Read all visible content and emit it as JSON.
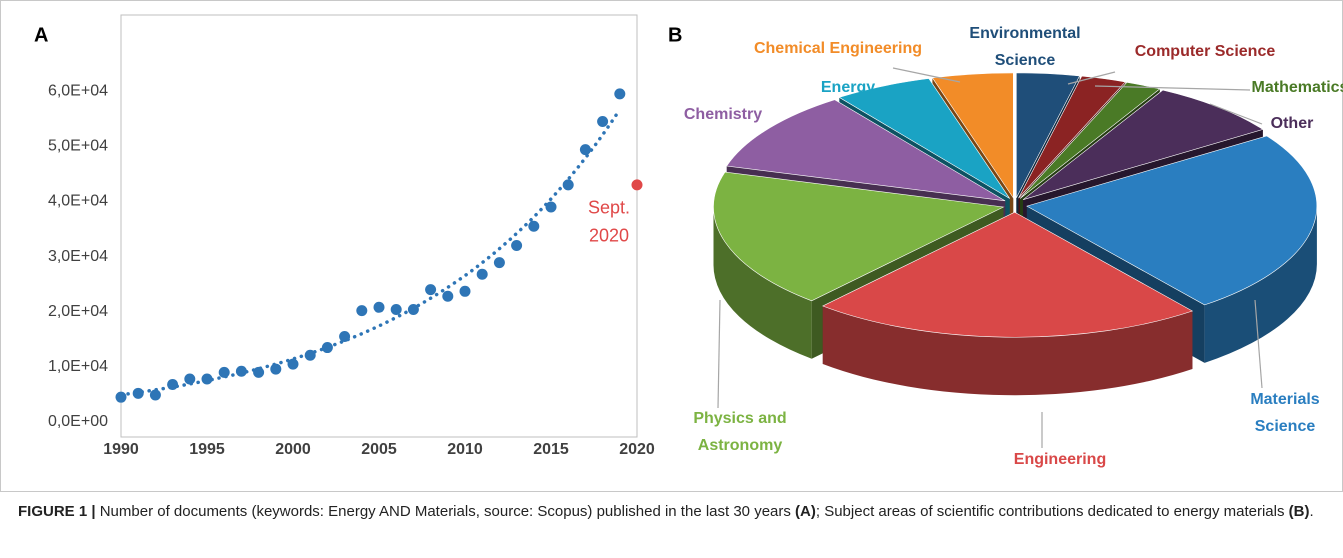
{
  "chart_data": [
    {
      "type": "scatter",
      "panel_label": "A",
      "xlim": [
        1990,
        2020
      ],
      "xticks": [
        1990,
        1995,
        2000,
        2005,
        2010,
        2015,
        2020
      ],
      "ylim": [
        0,
        70000
      ],
      "yticks": [
        {
          "value": 0,
          "label": "0,0E+00"
        },
        {
          "value": 10000,
          "label": "1,0E+04"
        },
        {
          "value": 20000,
          "label": "2,0E+04"
        },
        {
          "value": 30000,
          "label": "3,0E+04"
        },
        {
          "value": 40000,
          "label": "4,0E+04"
        },
        {
          "value": 50000,
          "label": "5,0E+04"
        },
        {
          "value": 60000,
          "label": "6,0E+04"
        }
      ],
      "grid": false,
      "series": [
        {
          "color": "#2e75b6",
          "trendline": "exponential",
          "x": [
            1990,
            1991,
            1992,
            1993,
            1994,
            1995,
            1996,
            1997,
            1998,
            1999,
            2000,
            2001,
            2002,
            2003,
            2004,
            2005,
            2006,
            2007,
            2008,
            2009,
            2010,
            2011,
            2012,
            2013,
            2014,
            2015,
            2016,
            2017,
            2018,
            2019
          ],
          "values": [
            4500,
            5200,
            4900,
            6800,
            7800,
            7800,
            9000,
            9200,
            9000,
            9600,
            10500,
            12100,
            13500,
            15500,
            20200,
            20800,
            20400,
            20400,
            24000,
            22800,
            23700,
            26800,
            28900,
            32000,
            35500,
            39000,
            43000,
            49400,
            54500,
            59500
          ]
        },
        {
          "color": "#e04848",
          "label": [
            "Sept.",
            "2020"
          ],
          "x": [
            2020
          ],
          "values": [
            43000
          ]
        }
      ]
    },
    {
      "type": "pie",
      "panel_label": "B",
      "categories": [
        "Environmental Science",
        "Computer Science",
        "Mathematics",
        "Other",
        "Materials Science",
        "Engineering",
        "Physics and Astronomy",
        "Chemistry",
        "Energy",
        "Chemical Engineering"
      ],
      "values": [
        3.5,
        2.5,
        2,
        7.5,
        24,
        22,
        18,
        10.5,
        5.5,
        4.5
      ],
      "colors": [
        "#1f4e79",
        "#8b2323",
        "#4a7a26",
        "#4b2e5a",
        "#2a7ec0",
        "#d94848",
        "#7cb342",
        "#8e5ea2",
        "#1aa3c4",
        "#f28c28"
      ],
      "label_colors": [
        "#1f4e79",
        "#9b2a2a",
        "#4a7a26",
        "#4b2e5a",
        "#2a7ec0",
        "#d94848",
        "#7cb342",
        "#8e5ea2",
        "#1aa3c4",
        "#f28c28"
      ]
    }
  ],
  "caption": {
    "label": "FIGURE 1 |",
    "part1": "Number of documents (keywords: Energy AND Materials, source: Scopus) published in the last 30 years",
    "ref1": "(A)",
    "part2": "; Subject areas of scientific contributions dedicated to energy materials",
    "ref2": "(B)",
    "end": "."
  }
}
